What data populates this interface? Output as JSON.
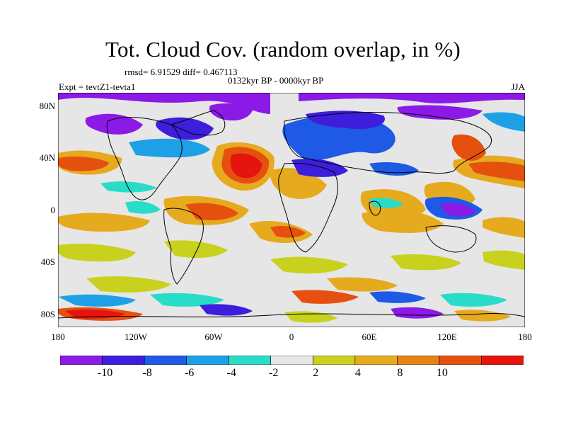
{
  "title": "Tot. Cloud Cov. (random overlap, in %)",
  "stats": "rmsd= 6.91529 diff= 0.467113",
  "period": "0132kyr BP - 0000kyr BP",
  "experiment": "Expt = tevtZ1-tevta1",
  "season": "JJA",
  "lat_labels": [
    "80N",
    "40N",
    "0",
    "40S",
    "80S"
  ],
  "lon_labels": [
    "180",
    "120W",
    "60W",
    "0",
    "60E",
    "120E",
    "180"
  ],
  "colorbar": {
    "colors": [
      "#8B1AE6",
      "#3C1EDC",
      "#1E5AE6",
      "#1EA0E6",
      "#28DCC8",
      "#E6E6E6",
      "#C8D21E",
      "#E6AA1E",
      "#E68214",
      "#E6500F",
      "#E6140F"
    ],
    "labels": [
      "-10",
      "-8",
      "-6",
      "-4",
      "-2",
      "2",
      "4",
      "8",
      "10"
    ]
  },
  "colors": {
    "ocean_neutral": "#E6E6E6",
    "coast": "#000000"
  }
}
